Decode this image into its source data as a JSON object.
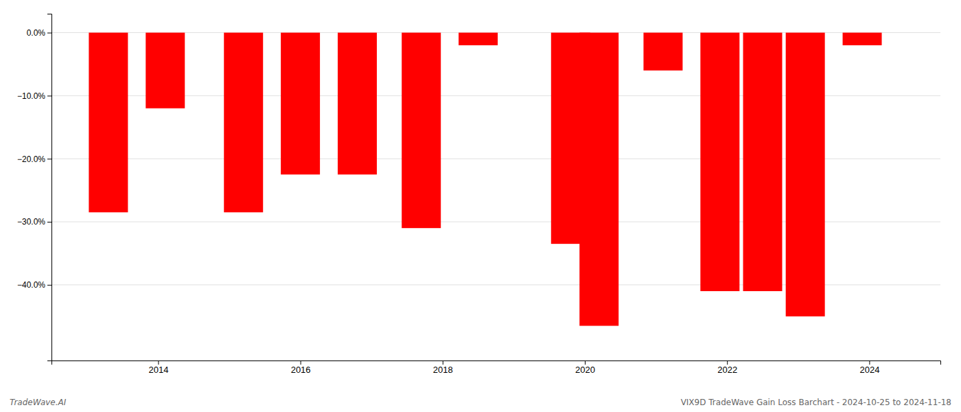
{
  "chart_data": {
    "type": "bar",
    "x": [
      2013.3,
      2014.1,
      2015.2,
      2016.0,
      2016.8,
      2017.7,
      2018.5,
      2019.8,
      2020.2,
      2021.1,
      2021.9,
      2022.5,
      2023.1,
      2023.9
    ],
    "values": [
      -28.5,
      -12.0,
      -28.5,
      -22.5,
      -22.5,
      -31.0,
      -2.0,
      -33.5,
      -46.5,
      -6.0,
      -41.0,
      -41.0,
      -45.0,
      -2.0
    ],
    "color": "#ff0000",
    "xlim": [
      2012.5,
      2025.0
    ],
    "xticks": [
      2014,
      2016,
      2018,
      2020,
      2022,
      2024
    ],
    "ylim": [
      -52,
      3
    ],
    "yticks": [
      {
        "value": 0.0,
        "label": "0.0%"
      },
      {
        "value": -10.0,
        "label": "−10.0%"
      },
      {
        "value": -20.0,
        "label": "−20.0%"
      },
      {
        "value": -30.0,
        "label": "−30.0%"
      },
      {
        "value": -40.0,
        "label": "−40.0%"
      }
    ],
    "grid": true,
    "annotations": [
      "TradeWave.AI",
      "VIX9D TradeWave Gain Loss Barchart - 2024-10-25 to 2024-11-18"
    ]
  }
}
